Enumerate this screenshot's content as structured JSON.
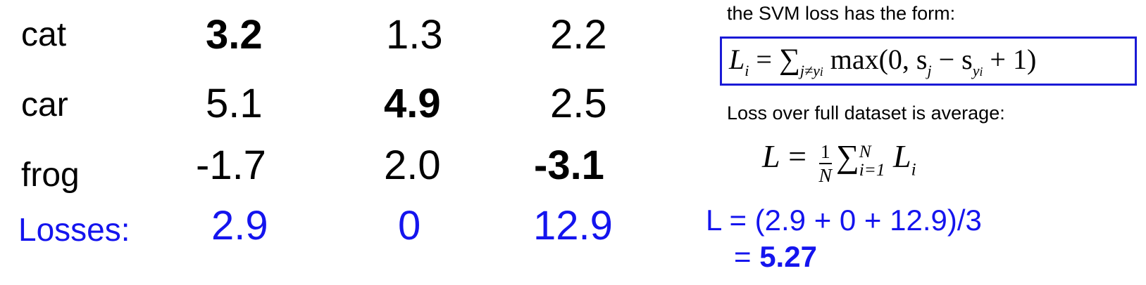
{
  "table": {
    "rows": [
      {
        "label": "cat",
        "scores": [
          "3.2",
          "1.3",
          "2.2"
        ]
      },
      {
        "label": "car",
        "scores": [
          "5.1",
          "4.9",
          "2.5"
        ]
      },
      {
        "label": "frog",
        "scores": [
          "-1.7",
          "2.0",
          "-3.1"
        ]
      }
    ],
    "losses_label": "Losses:",
    "losses": [
      "2.9",
      "0",
      "12.9"
    ]
  },
  "right": {
    "svm_caption": "the SVM loss has the form:",
    "svm_formula": {
      "lhs": "L",
      "lhs_sub": "i",
      "eq": "=",
      "sum_sub": "j≠y",
      "sum_sub_sub": "i",
      "body_pre": "max(0, s",
      "s_j_sub": "j",
      "minus": " − s",
      "s_y_sub": "y",
      "s_y_sub_sub": "i",
      "body_post": " + 1)"
    },
    "avg_caption": "Loss over full dataset is average:",
    "avg_formula": {
      "lhs": "L",
      "eq": "=",
      "frac_num": "1",
      "frac_den": "N",
      "sum_sup": "N",
      "sum_sub": "i=1",
      "term": "L",
      "term_sub": "i"
    },
    "calc_line1": "L = (2.9 + 0 + 12.9)/3",
    "calc_line2_prefix": "= ",
    "calc_line2_value": "5.27"
  }
}
